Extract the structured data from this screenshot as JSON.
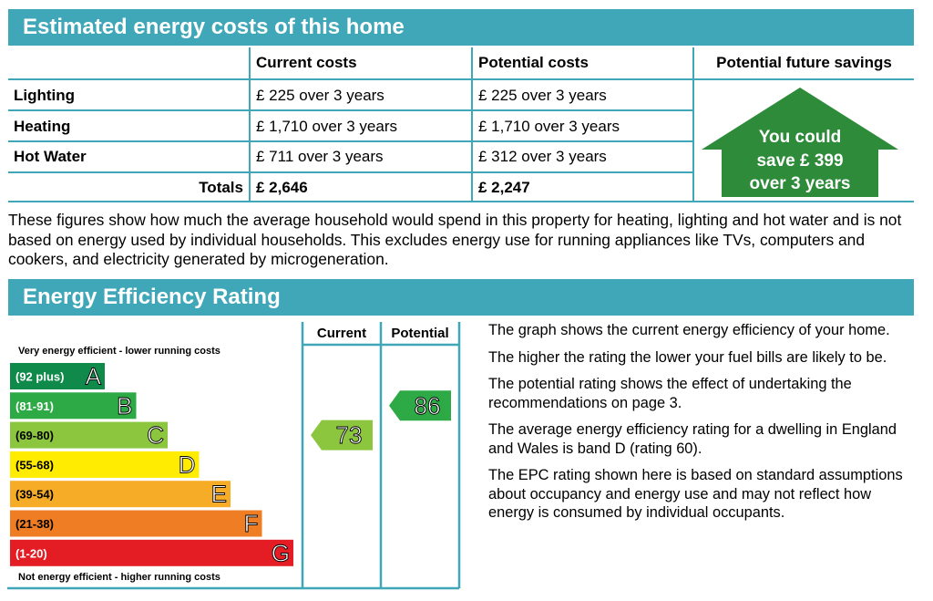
{
  "costs_section": {
    "title": "Estimated energy costs of this home",
    "headers": [
      "Current costs",
      "Potential costs",
      "Potential future savings"
    ],
    "rows": [
      {
        "label": "Lighting",
        "current": "£ 225 over 3 years",
        "potential": "£ 225 over 3 years"
      },
      {
        "label": "Heating",
        "current": "£ 1,710 over 3 years",
        "potential": "£ 1,710 over 3 years"
      },
      {
        "label": "Hot Water",
        "current": "£ 711 over 3 years",
        "potential": "£ 312 over 3 years"
      }
    ],
    "totals": {
      "label": "Totals",
      "current": "£ 2,646",
      "potential": "£ 2,247"
    },
    "savings": {
      "line1": "You could",
      "line2": "save £ 399",
      "line3": "over 3 years",
      "color": "#2e8b3a"
    },
    "note": "These figures show how much the average household would spend in this property for heating, lighting and hot water and is not based on energy used by individual households. This excludes energy use for running appliances like TVs, computers and cookers, and electricity generated by microgeneration."
  },
  "rating_section": {
    "title": "Energy Efficiency Rating",
    "top_label": "Very energy efficient - lower running costs",
    "bottom_label": "Not energy efficient - higher running costs",
    "column_current": "Current",
    "column_potential": "Potential",
    "bands": [
      {
        "range": "(92 plus)",
        "letter": "A",
        "color": "#0f8a4a"
      },
      {
        "range": "(81-91)",
        "letter": "B",
        "color": "#2da946"
      },
      {
        "range": "(69-80)",
        "letter": "C",
        "color": "#8cc63f"
      },
      {
        "range": "(55-68)",
        "letter": "D",
        "color": "#ffec00"
      },
      {
        "range": "(39-54)",
        "letter": "E",
        "color": "#f7ac28"
      },
      {
        "range": "(21-38)",
        "letter": "F",
        "color": "#ef7d24"
      },
      {
        "range": "(1-20)",
        "letter": "G",
        "color": "#e31d23"
      }
    ],
    "current_rating": {
      "value": "73",
      "band": "C",
      "color": "#8cc63f"
    },
    "potential_rating": {
      "value": "86",
      "band": "B",
      "color": "#2da946"
    },
    "explanations": [
      "The graph shows the current energy efficiency of your home.",
      "The higher the rating the lower your fuel bills are likely to be.",
      "The potential rating shows the effect of undertaking the recommendations on page 3.",
      "The average energy efficiency rating for a dwelling in England and Wales is band D (rating 60).",
      "The EPC rating shown here is based on standard assumptions about occupancy and energy use and may not reflect how energy is consumed by individual occupants."
    ]
  }
}
